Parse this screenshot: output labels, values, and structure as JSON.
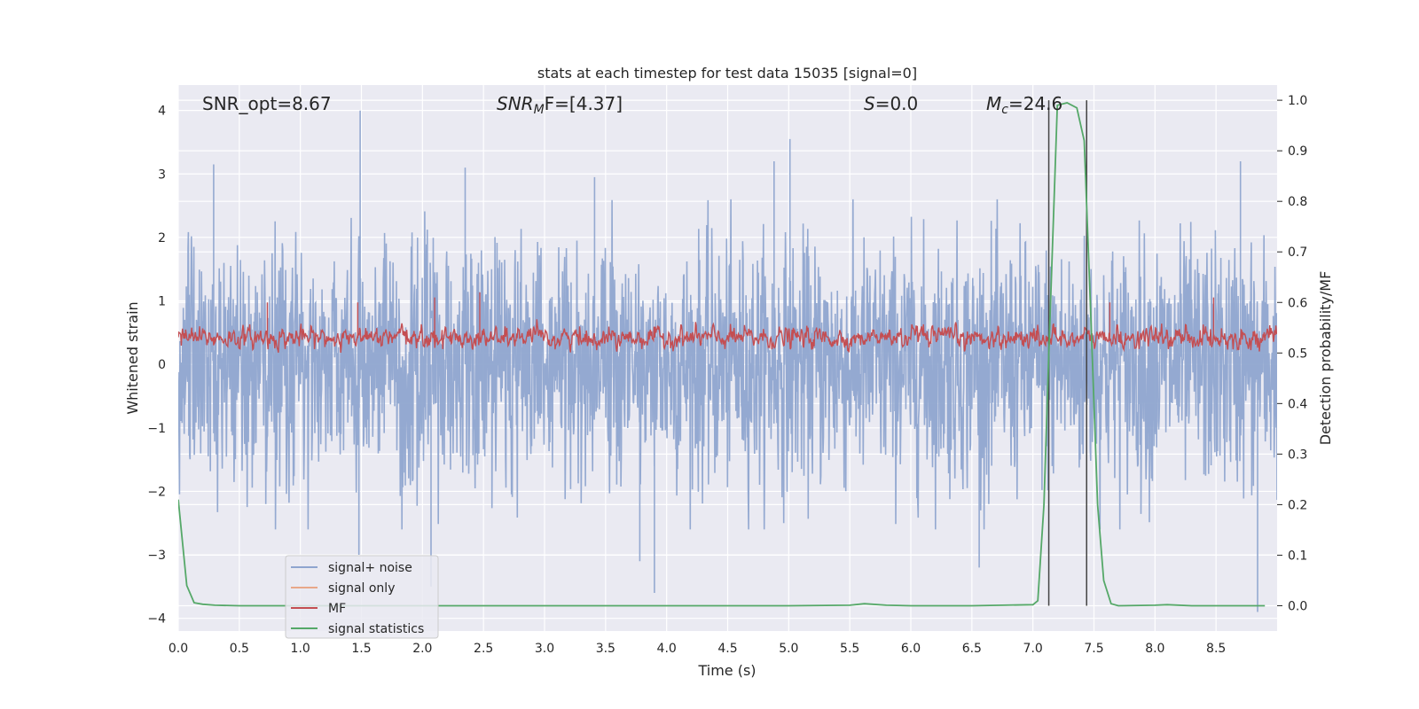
{
  "chart_data": {
    "type": "line",
    "title": "stats at each timestep for test data 15035 [signal=0]",
    "xlabel": "Time (s)",
    "ylabel": "Whitened strain",
    "y2label": "Detection probability/MF",
    "xlim": [
      0,
      9
    ],
    "ylim": [
      -4.2,
      4.4
    ],
    "y2lim": [
      -0.05,
      1.03
    ],
    "xticks": [
      0.0,
      0.5,
      1.0,
      1.5,
      2.0,
      2.5,
      3.0,
      3.5,
      4.0,
      4.5,
      5.0,
      5.5,
      6.0,
      6.5,
      7.0,
      7.5,
      8.0,
      8.5
    ],
    "xtick_labels": [
      "0.0",
      "0.5",
      "1.0",
      "1.5",
      "2.0",
      "2.5",
      "3.0",
      "3.5",
      "4.0",
      "4.5",
      "5.0",
      "5.5",
      "6.0",
      "6.5",
      "7.0",
      "7.5",
      "8.0",
      "8.5"
    ],
    "yticks": [
      -4,
      -3,
      -2,
      -1,
      0,
      1,
      2,
      3,
      4
    ],
    "ytick_labels": [
      "−4",
      "−3",
      "−2",
      "−1",
      "0",
      "1",
      "2",
      "3",
      "4"
    ],
    "y2ticks": [
      0.0,
      0.1,
      0.2,
      0.3,
      0.4,
      0.5,
      0.6,
      0.7,
      0.8,
      0.9,
      1.0
    ],
    "y2tick_labels": [
      "0.0",
      "0.1",
      "0.2",
      "0.3",
      "0.4",
      "0.5",
      "0.6",
      "0.7",
      "0.8",
      "0.9",
      "1.0"
    ],
    "grid": true,
    "legend": "lower-left",
    "annotations": {
      "snr_opt": "SNR_opt=8.67",
      "snr_mf_main": "SNR",
      "snr_mf_sub": "M",
      "snr_mf_rest": "F=[4.37]",
      "s_main": "S",
      "s_rest": "=0.0",
      "mc_main": "M",
      "mc_sub": "c",
      "mc_rest": "=24.6"
    },
    "vertical_lines": [
      7.13,
      7.44
    ],
    "series": [
      {
        "name": "signal+ noise",
        "color": "#8fa5cf",
        "axis": "left",
        "description": "whitened noise, roughly between -2.5 and 2.5, peaks near 4",
        "highlights": [
          [
            0.29,
            3.15
          ],
          [
            1.49,
            4.0
          ],
          [
            2.35,
            3.1
          ],
          [
            3.41,
            2.95
          ],
          [
            4.88,
            3.2
          ],
          [
            5.01,
            3.55
          ],
          [
            8.7,
            3.2
          ],
          [
            2.07,
            -3.5
          ],
          [
            3.9,
            -3.6
          ],
          [
            8.84,
            -3.9
          ],
          [
            1.48,
            -3.0
          ],
          [
            6.56,
            -3.2
          ],
          [
            3.78,
            -3.1
          ]
        ]
      },
      {
        "name": "signal only",
        "color": "#e8a789",
        "axis": "left",
        "values": []
      },
      {
        "name": "MF",
        "color": "#c44e52",
        "axis": "right",
        "description": "matched filter output fluctuating about 0.53, peaks near 0.6",
        "baseline": 0.53,
        "highlights": [
          [
            0.73,
            0.6
          ],
          [
            1.47,
            0.6
          ],
          [
            2.1,
            0.61
          ],
          [
            2.47,
            0.62
          ],
          [
            8.48,
            0.61
          ],
          [
            7.63,
            0.6
          ]
        ]
      },
      {
        "name": "signal statistics",
        "color": "#55a868",
        "axis": "right",
        "x": [
          0.0,
          0.07,
          0.13,
          0.2,
          0.3,
          0.5,
          1.0,
          2.0,
          3.0,
          4.0,
          5.0,
          5.5,
          5.62,
          5.8,
          6.0,
          6.5,
          7.0,
          7.04,
          7.09,
          7.13,
          7.2,
          7.28,
          7.36,
          7.42,
          7.47,
          7.53,
          7.58,
          7.64,
          7.7,
          8.0,
          8.1,
          8.3,
          8.5,
          8.9
        ],
        "values": [
          0.21,
          0.04,
          0.006,
          0.003,
          0.001,
          0.0,
          0.0,
          0.0,
          0.0,
          0.0,
          0.0,
          0.001,
          0.004,
          0.001,
          0.0,
          0.0,
          0.002,
          0.01,
          0.2,
          0.5,
          0.99,
          0.995,
          0.985,
          0.92,
          0.6,
          0.2,
          0.05,
          0.004,
          0.0,
          0.001,
          0.002,
          0.0,
          0.0,
          0.0
        ]
      }
    ]
  }
}
